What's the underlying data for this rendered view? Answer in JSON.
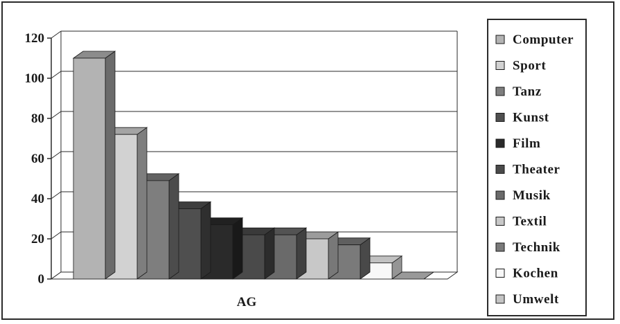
{
  "chart_data": {
    "type": "bar",
    "categories": [
      "AG"
    ],
    "xlabel": "AG",
    "ylim": [
      0,
      120
    ],
    "yticks": [
      0,
      20,
      40,
      60,
      80,
      100,
      120
    ],
    "grid": true,
    "legend_position": "right",
    "style": "3d-clustered-column",
    "series": [
      {
        "name": "Computer",
        "values": [
          110
        ],
        "color": "#b3b3b3"
      },
      {
        "name": "Sport",
        "values": [
          72
        ],
        "color": "#d2d2d2"
      },
      {
        "name": "Tanz",
        "values": [
          49
        ],
        "color": "#7e7e7e"
      },
      {
        "name": "Kunst",
        "values": [
          35
        ],
        "color": "#4f4f4f"
      },
      {
        "name": "Film",
        "values": [
          27
        ],
        "color": "#2a2a2a"
      },
      {
        "name": "Theater",
        "values": [
          22
        ],
        "color": "#4a4a4a"
      },
      {
        "name": "Musik",
        "values": [
          22
        ],
        "color": "#6a6a6a"
      },
      {
        "name": "Textil",
        "values": [
          20
        ],
        "color": "#c8c8c8"
      },
      {
        "name": "Technik",
        "values": [
          17
        ],
        "color": "#7a7a7a"
      },
      {
        "name": "Kochen",
        "values": [
          8
        ],
        "color": "#f8f8f8"
      },
      {
        "name": "Umwelt",
        "values": [
          0
        ],
        "color": "#c4c4c4"
      }
    ]
  }
}
